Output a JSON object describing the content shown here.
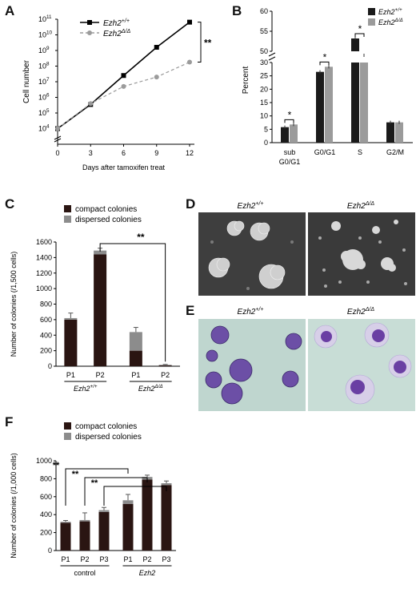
{
  "panels": {
    "A": "A",
    "B": "B",
    "C": "C",
    "D": "D",
    "E": "E",
    "F": "F"
  },
  "colors": {
    "black_series": "#000000",
    "gray_series": "#9b9b9b",
    "compact": "#2a1512",
    "dispersed": "#8c8c8c",
    "err": "#555555"
  },
  "significance": {
    "double": "**",
    "single": "*"
  },
  "chart_data": [
    {
      "id": "A",
      "type": "line",
      "ylabel": "Cell number",
      "xlabel": "Days after tamoxifen treat",
      "x": [
        0,
        3,
        6,
        9,
        12
      ],
      "xticks": [
        "0",
        "3",
        "6",
        "9",
        "12"
      ],
      "yscale": "log",
      "ylim": [
        1000,
        100000000000
      ],
      "yticks": [
        {
          "value": 10000,
          "base": "10",
          "exp": "4"
        },
        {
          "value": 100000,
          "base": "10",
          "exp": "5"
        },
        {
          "value": 1000000,
          "base": "10",
          "exp": "6"
        },
        {
          "value": 10000000,
          "base": "10",
          "exp": "7"
        },
        {
          "value": 100000000,
          "base": "10",
          "exp": "8"
        },
        {
          "value": 1000000000,
          "base": "10",
          "exp": "9"
        },
        {
          "value": 10000000000,
          "base": "10",
          "exp": "10"
        },
        {
          "value": 100000000000,
          "base": "10",
          "exp": "11"
        }
      ],
      "series": [
        {
          "name": "Ezh2",
          "sup": "+/+",
          "style": "solid",
          "marker": "square",
          "color": "#000000",
          "values": [
            10000,
            350000,
            25000000,
            1600000000,
            65000000000
          ]
        },
        {
          "name": "Ezh2",
          "sup": "Δ/Δ",
          "style": "dashed",
          "marker": "circle",
          "color": "#9b9b9b",
          "values": [
            10000,
            400000,
            5000000,
            20000000,
            180000000
          ]
        }
      ],
      "annotation": "**"
    },
    {
      "id": "B",
      "type": "bar",
      "ylabel": "Percent",
      "categories": [
        {
          "main": "sub",
          "sub": "G0/G1"
        },
        {
          "main": "G0/G1",
          "sub": ""
        },
        {
          "main": "S",
          "sub": ""
        },
        {
          "main": "G2/M",
          "sub": ""
        }
      ],
      "lower_ticks": [
        "0",
        "5",
        "10",
        "15",
        "20",
        "25",
        "30"
      ],
      "upper_ticks": [
        "50",
        "55",
        "60"
      ],
      "axis_break": [
        30,
        50
      ],
      "series": [
        {
          "name": "Ezh2",
          "sup": "+/+",
          "color": "#1a1a1a",
          "values": [
            5.8,
            26.5,
            53.2,
            7.6
          ]
        },
        {
          "name": "Ezh2",
          "sup": "Δ/Δ",
          "color": "#9b9b9b",
          "values": [
            6.8,
            28.4,
            49.0,
            7.6
          ]
        }
      ],
      "significance": [
        "*",
        "*",
        "*",
        ""
      ]
    },
    {
      "id": "C",
      "type": "bar",
      "stacked": true,
      "ylabel": "Number of colonies (/1,500 cells)",
      "ylim": [
        0,
        1600
      ],
      "yticks": [
        "0",
        "200",
        "400",
        "600",
        "800",
        "1000",
        "1200",
        "1400",
        "1600"
      ],
      "categories": [
        "P1",
        "P2",
        "P1",
        "P2"
      ],
      "groups": [
        {
          "name": "Ezh2",
          "sup": "+/+"
        },
        {
          "name": "Ezh2",
          "sup": "Δ/Δ"
        }
      ],
      "series": [
        {
          "name": "compact colonies",
          "color": "#2a1512",
          "values": [
            600,
            1440,
            200,
            10
          ]
        },
        {
          "name": "dispersed colonies",
          "color": "#8c8c8c",
          "values": [
            20,
            50,
            240,
            8
          ]
        }
      ],
      "errors": [
        65,
        30,
        60,
        5
      ],
      "annotation": "**"
    },
    {
      "id": "F",
      "type": "bar",
      "stacked": true,
      "ylabel": "Number of colonies (/1,000 cells)",
      "ylim": [
        0,
        1000
      ],
      "yticks": [
        "0",
        "200",
        "400",
        "600",
        "800",
        "1000"
      ],
      "categories": [
        "P1",
        "P2",
        "P3",
        "P1",
        "P2",
        "P3"
      ],
      "groups": [
        {
          "name": "control",
          "italic": false
        },
        {
          "name": "Ezh2",
          "italic": true
        }
      ],
      "series": [
        {
          "name": "compact colonies",
          "color": "#2a1512",
          "values": [
            310,
            325,
            430,
            520,
            790,
            730
          ]
        },
        {
          "name": "dispersed colonies",
          "color": "#8c8c8c",
          "values": [
            10,
            15,
            20,
            40,
            30,
            20
          ]
        }
      ],
      "errors": [
        15,
        80,
        30,
        65,
        20,
        25
      ],
      "annotations": [
        "**",
        "**",
        "**"
      ]
    }
  ],
  "images": {
    "D": {
      "left": {
        "name": "Ezh2",
        "sup": "+/+"
      },
      "right": {
        "name": "Ezh2",
        "sup": "Δ/Δ"
      }
    },
    "E": {
      "left": {
        "name": "Ezh2",
        "sup": "+/+"
      },
      "right": {
        "name": "Ezh2",
        "sup": "Δ/Δ"
      }
    }
  }
}
